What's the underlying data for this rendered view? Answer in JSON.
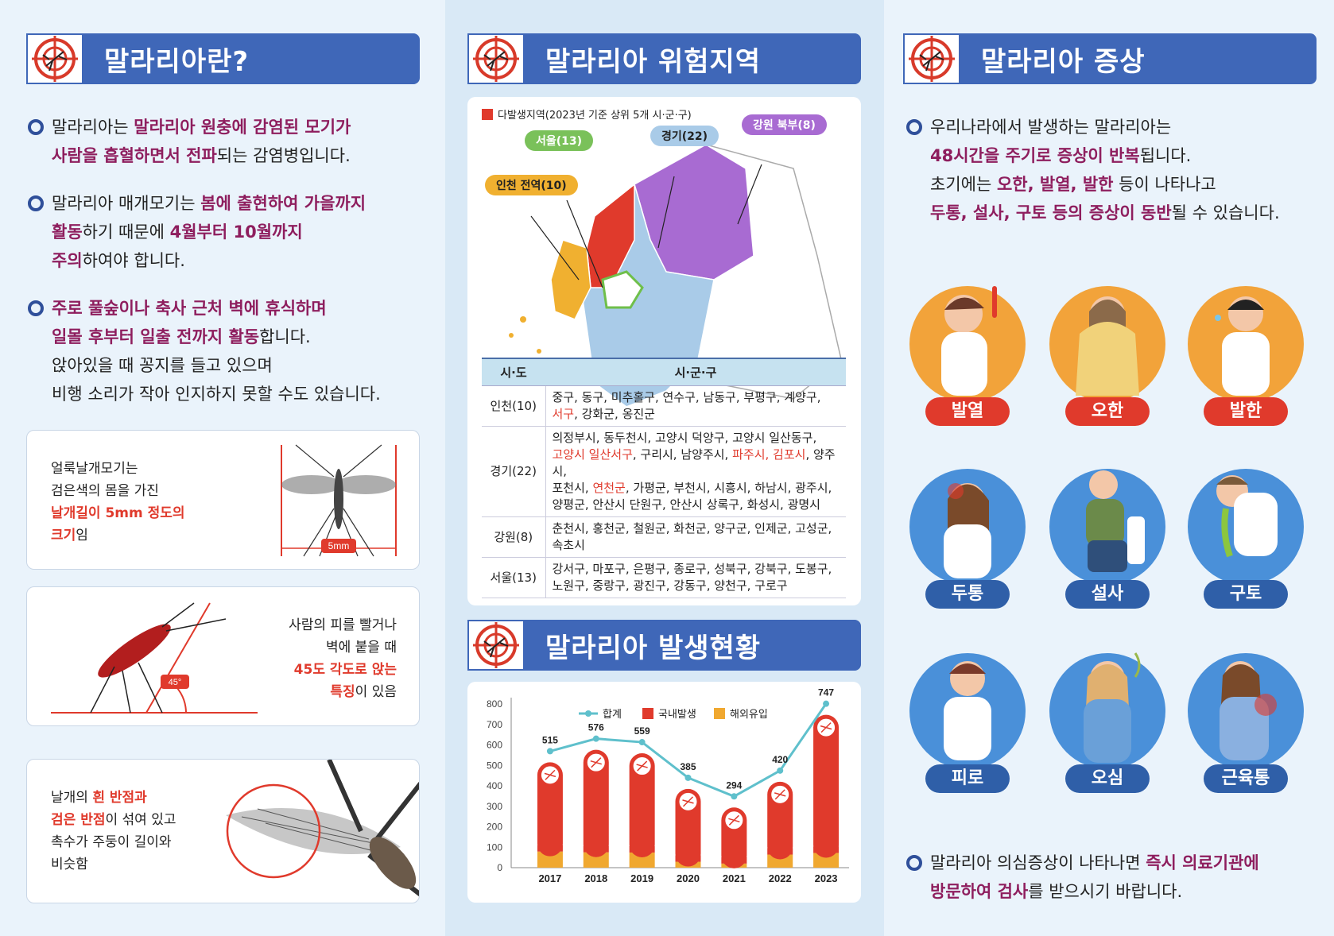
{
  "col1": {
    "title": "말라리아란?",
    "b1": {
      "p1": "말라리아는 ",
      "h1": "말라리아 원충에 감염된 모기가",
      "h2": "사람을 흡혈하면서 전파",
      "p2": "되는 감염병입니다."
    },
    "b2": {
      "p1": "말라리아 매개모기는 ",
      "h1": "봄에 출현하여 가을까지",
      "h2": "활동",
      "p2": "하기 때문에 ",
      "h3": "4월부터 10월까지",
      "h4": "주의",
      "p3": "하여야 합니다."
    },
    "b3": {
      "h1": "주로 풀숲이나 축사 근처 벽에 휴식하며",
      "h2": "일몰 후부터 일출 전까지 활동",
      "p1": "합니다.",
      "p2": "앉아있을 때 꽁지를 들고 있으며",
      "p3": "비행 소리가 작아 인지하지 못할 수도 있습니다."
    },
    "card1": {
      "l1": "얼룩날개모기는",
      "l2": "검은색의 몸을 가진",
      "r1": "날개길이 5mm 정도의",
      "r2": "크기",
      "l3": "임",
      "tag": "5mm"
    },
    "card2": {
      "l1": "사람의 피를 빨거나",
      "l2": "벽에 붙을 때",
      "r1": "45도 각도로 앉는",
      "r2": "특징",
      "l3": "이 있음",
      "tag": "45°"
    },
    "card3": {
      "l1": "날개의 ",
      "r1": "흰 반점과",
      "r2": "검은 반점",
      "l2": "이 섞여 있고",
      "l3": "촉수가 주둥이 길이와",
      "l4": "비슷함"
    }
  },
  "col2": {
    "title1": "말라리아 위험지역",
    "legend": "다발생지역(2023년 기준 상위 5개 시·군·구)",
    "tags": {
      "seoul": "서울(13)",
      "gyeonggi": "경기(22)",
      "gangwon": "강원 북부(8)",
      "incheon": "인천 전역(10)"
    },
    "table": {
      "h1": "시·도",
      "h2": "시·군·구",
      "r1": {
        "sd": "인천(10)",
        "a": "중구, 동구, 미추홀구, 연수구, 남동구, 부평구, 계양구,",
        "b_red": "서구",
        "b": ", 강화군, 옹진군"
      },
      "r2": {
        "sd": "경기(22)",
        "a": "의정부시, 동두천시, 고양시 덕양구, 고양시 일산동구,",
        "b_red": "고양시 일산서구",
        "b": ", 구리시, 남양주시, ",
        "b_red2": "파주시, 김포시",
        "b2": ", 양주시,",
        "c": "포천시, ",
        "c_red": "연천군",
        "c2": ", 가평군, 부천시, 시흥시, 하남시, 광주시,",
        "d": "양평군, 안산시 단원구, 안산시 상록구, 화성시, 광명시"
      },
      "r3": {
        "sd": "강원(8)",
        "a": "춘천시, 홍천군, 철원군, 화천군, 양구군, 인제군, 고성군,",
        "b": "속초시"
      },
      "r4": {
        "sd": "서울(13)",
        "a": "강서구, 마포구, 은평구, 종로구, 성북구, 강북구, 도봉구,",
        "b": "노원구, 중랑구, 광진구, 강동구, 양천구, 구로구"
      }
    },
    "title2": "말라리아 발생현황"
  },
  "chart_data": {
    "type": "bar",
    "categories": [
      "2017",
      "2018",
      "2019",
      "2020",
      "2021",
      "2022",
      "2023"
    ],
    "series": [
      {
        "name": "합계",
        "values": [
          515,
          576,
          559,
          385,
          294,
          420,
          747
        ]
      },
      {
        "name": "국내발생",
        "values": [
          436,
          501,
          485,
          356,
          274,
          356,
          675
        ]
      },
      {
        "name": "해외유입",
        "values": [
          79,
          75,
          74,
          29,
          20,
          64,
          72
        ]
      }
    ],
    "ylim": [
      0,
      800
    ],
    "yticks": [
      "800",
      "700",
      "600",
      "500",
      "400",
      "300",
      "200",
      "100",
      "0"
    ],
    "colors": {
      "total": "#5fc0cc",
      "domestic": "#e03a2c",
      "overseas": "#f0a830"
    }
  },
  "col3": {
    "title": "말라리아 증상",
    "b1": {
      "p1": "우리나라에서 발생하는 말라리아는",
      "h1": "48시간을 주기로 증상이 반복",
      "p2": "됩니다.",
      "p3": "초기에는 ",
      "h2": "오한, 발열, 발한",
      "p4": " 등이 나타나고",
      "h3": "두통, 설사, 구토 등의 증상이 동반",
      "p5": "될 수 있습니다."
    },
    "symptoms": [
      "발열",
      "오한",
      "발한",
      "두통",
      "설사",
      "구토",
      "피로",
      "오심",
      "근육통"
    ],
    "b2": {
      "p1": "말라리아 의심증상이 나타나면 ",
      "h1": "즉시 의료기관에",
      "h2": "방문하여 검사",
      "p2": "를 받으시기 바랍니다."
    }
  }
}
